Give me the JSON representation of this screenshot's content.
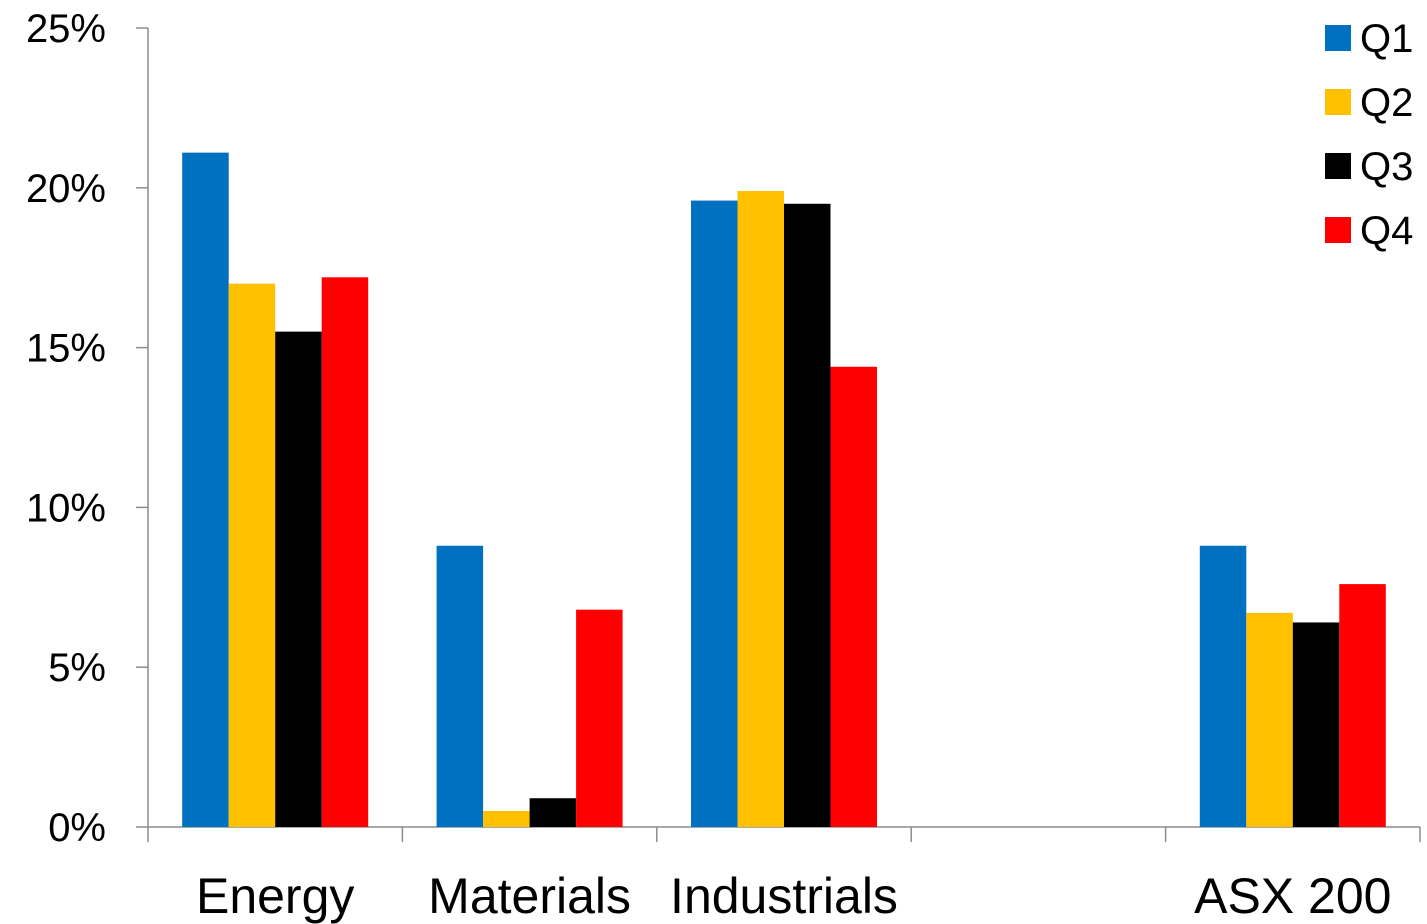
{
  "chart_data": {
    "type": "bar",
    "title": "",
    "xlabel": "",
    "ylabel": "",
    "categories": [
      "Energy",
      "Materials",
      "Industrials",
      "",
      "ASX 200"
    ],
    "series": [
      {
        "name": "Q1",
        "color": "#0070C0",
        "values": [
          21.1,
          8.8,
          19.6,
          null,
          8.8
        ]
      },
      {
        "name": "Q2",
        "color": "#FFC000",
        "values": [
          17.0,
          0.5,
          19.9,
          null,
          6.7
        ]
      },
      {
        "name": "Q3",
        "color": "#000000",
        "values": [
          15.5,
          0.9,
          19.5,
          null,
          6.4
        ]
      },
      {
        "name": "Q4",
        "color": "#FF0000",
        "values": [
          17.2,
          6.8,
          14.4,
          null,
          7.6
        ]
      }
    ],
    "ylim": [
      0,
      25
    ],
    "yticks": [
      0,
      5,
      10,
      15,
      20,
      25
    ],
    "ytick_labels": [
      "0%",
      "5%",
      "10%",
      "15%",
      "20%",
      "25%"
    ],
    "grid": false,
    "legend_position": "top-right"
  }
}
